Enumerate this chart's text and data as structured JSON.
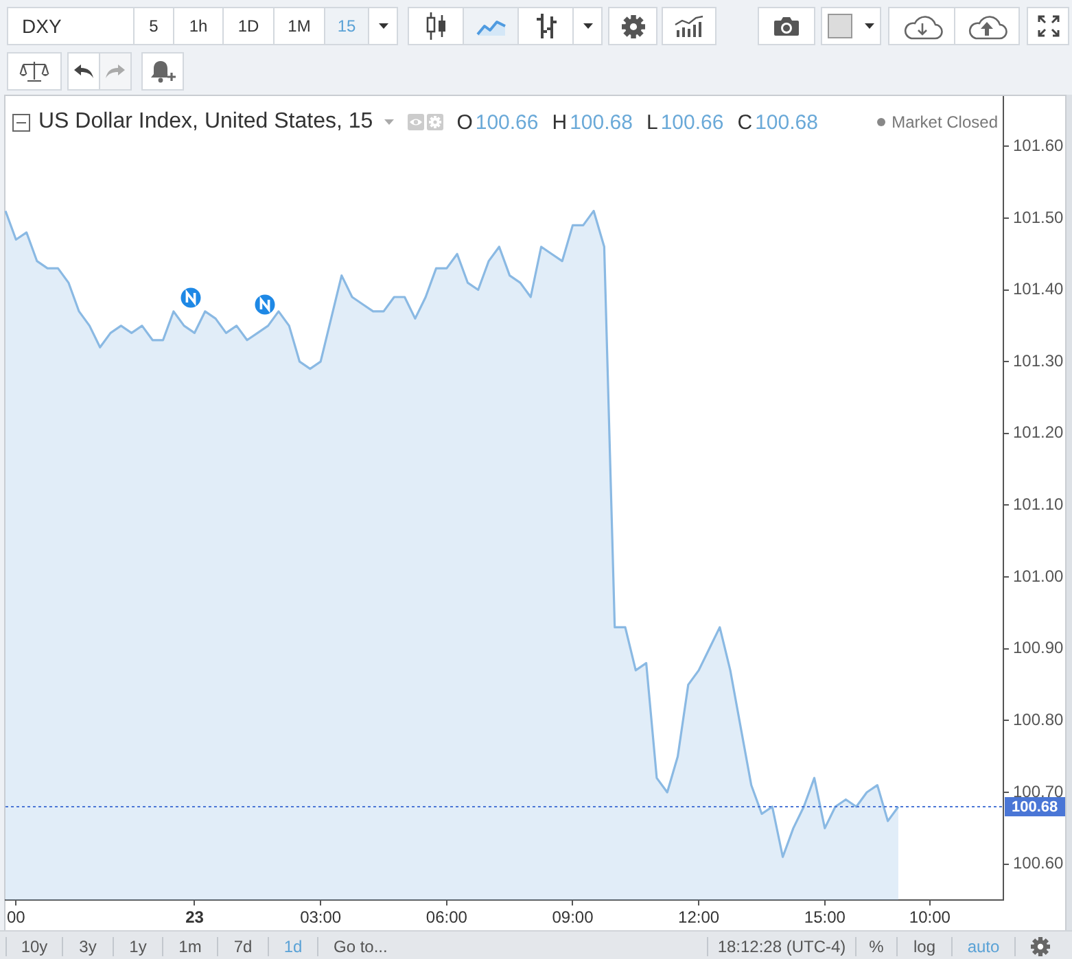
{
  "chart_data": {
    "type": "area",
    "title": "US Dollar Index, United States, 15",
    "categories": [
      null,
      "00",
      null,
      null,
      null,
      null,
      null,
      null,
      null,
      null,
      null,
      null,
      null,
      null,
      null,
      null,
      null,
      null,
      "23",
      null,
      null,
      null,
      null,
      null,
      null,
      null,
      null,
      null,
      null,
      null,
      "03:00",
      null,
      null,
      null,
      null,
      null,
      null,
      null,
      null,
      null,
      null,
      null,
      "06:00",
      null,
      null,
      null,
      null,
      null,
      null,
      null,
      null,
      null,
      null,
      null,
      "09:00",
      null,
      null,
      null,
      null,
      null,
      null,
      null,
      null,
      null,
      null,
      null,
      "12:00",
      null,
      null,
      null,
      null,
      null,
      null,
      null,
      null,
      null,
      null,
      null,
      "15:00",
      null,
      null,
      null,
      null,
      null,
      null,
      null,
      null,
      null,
      "10:00",
      null,
      null,
      null,
      null,
      null,
      null,
      null
    ],
    "values": [
      101.51,
      101.47,
      101.48,
      101.44,
      101.43,
      101.43,
      101.41,
      101.37,
      101.35,
      101.32,
      101.34,
      101.35,
      101.34,
      101.35,
      101.33,
      101.33,
      101.37,
      101.35,
      101.34,
      101.37,
      101.36,
      101.34,
      101.35,
      101.33,
      101.34,
      101.35,
      101.37,
      101.35,
      101.3,
      101.29,
      101.3,
      101.36,
      101.42,
      101.39,
      101.38,
      101.37,
      101.37,
      101.39,
      101.39,
      101.36,
      101.39,
      101.43,
      101.43,
      101.45,
      101.41,
      101.4,
      101.44,
      101.46,
      101.42,
      101.41,
      101.39,
      101.46,
      101.45,
      101.44,
      101.49,
      101.49,
      101.51,
      101.46,
      100.93,
      100.93,
      100.87,
      100.88,
      100.72,
      100.7,
      100.75,
      100.85,
      100.87,
      100.9,
      100.93,
      100.87,
      100.79,
      100.71,
      100.67,
      100.68,
      100.61,
      100.65,
      100.68,
      100.72,
      100.65,
      100.68,
      100.69,
      100.68,
      100.7,
      100.71,
      100.66,
      100.68,
      null,
      null,
      null,
      null,
      null,
      null,
      null,
      null,
      null,
      null
    ],
    "color": "#8ab9e3",
    "ylim": [
      100.55,
      101.67
    ],
    "yticks": [
      {
        "value": 100.6,
        "label": "100.60"
      },
      {
        "value": 100.7,
        "label": "100.70"
      },
      {
        "value": 100.8,
        "label": "100.80"
      },
      {
        "value": 100.9,
        "label": "100.90"
      },
      {
        "value": 101,
        "label": "101.00"
      },
      {
        "value": 101.1,
        "label": "101.10"
      },
      {
        "value": 101.2,
        "label": "101.20"
      },
      {
        "value": 101.3,
        "label": "101.30"
      },
      {
        "value": 101.4,
        "label": "101.40"
      },
      {
        "value": 101.5,
        "label": "101.50"
      },
      {
        "value": 101.6,
        "label": "101.60"
      }
    ],
    "ref_lines": [
      {
        "axis": "y",
        "value": 100.68,
        "label": "100.68",
        "color": "#4a76d6",
        "line_style": "dotted"
      }
    ],
    "annotations": [
      "DXY",
      "5",
      "1h",
      "1D",
      "1M",
      "15",
      "O",
      "100.66",
      "H",
      "100.68",
      "L",
      "100.66",
      "C",
      "100.68",
      "Market Closed",
      "10y",
      "3y",
      "1y",
      "1m",
      "7d",
      "1d",
      "Go to...",
      "18:12:28 (UTC-4)",
      "%",
      "log",
      "auto"
    ]
  }
}
